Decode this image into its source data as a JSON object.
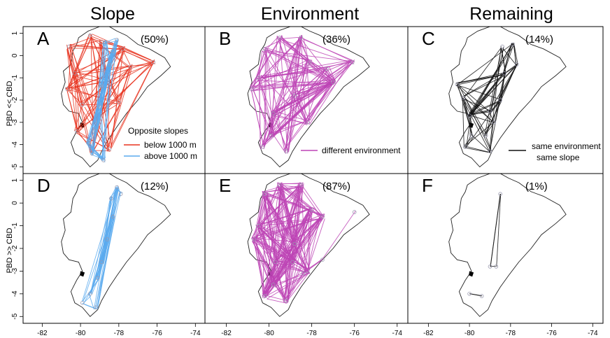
{
  "column_titles": [
    "Slope",
    "Environment",
    "Remaining"
  ],
  "row_labels": [
    "PBD << CBD",
    "PBD >> CBD"
  ],
  "colors": {
    "red": "#e8321e",
    "blue": "#5aaaee",
    "magenta": "#bd44b5",
    "black": "#111111",
    "outline": "#222222"
  },
  "legend": {
    "A_title": "Opposite slopes",
    "A_items": [
      {
        "label": "below 1000 m",
        "color": "#e8321e"
      },
      {
        "label": "above 1000 m",
        "color": "#5aaaee"
      }
    ],
    "B_item": {
      "label": "different environment",
      "color": "#bd44b5"
    },
    "C_lines": [
      "same environment",
      "same slope"
    ]
  },
  "chart_data": {
    "type": "network-map",
    "x_ticks": [
      "-82",
      "-80",
      "-78",
      "-76",
      "-74"
    ],
    "x_tick_values": [
      -82,
      -80,
      -78,
      -76,
      -74
    ],
    "y_ticks": [
      "1",
      "0",
      "-1",
      "-2",
      "-3",
      "-4",
      "-5"
    ],
    "y_tick_values": [
      1,
      0,
      -1,
      -2,
      -3,
      -4,
      -5
    ],
    "xlim": [
      -83,
      -73.5
    ],
    "ylim": [
      -5.3,
      1.3
    ],
    "panels": [
      {
        "letter": "A",
        "percent": "(50%)",
        "row": 0,
        "col": 0,
        "series": [
          {
            "color": "red",
            "count": 110,
            "nodes": [
              [
                -80.6,
                0.4
              ],
              [
                -80.3,
                -0.8
              ],
              [
                -79.9,
                -2.2
              ],
              [
                -80.2,
                -3.4
              ],
              [
                -79.4,
                -4.3
              ],
              [
                -78.9,
                0.6
              ],
              [
                -78.6,
                -1.2
              ],
              [
                -78.0,
                -2.1
              ],
              [
                -77.4,
                -0.5
              ],
              [
                -76.2,
                -0.3
              ],
              [
                -78.5,
                -4.2
              ],
              [
                -79.5,
                0.9
              ],
              [
                -80.7,
                -1.5
              ],
              [
                -77.8,
                0.3
              ],
              [
                -79.2,
                -2.9
              ]
            ],
            "spread": 0.25
          },
          {
            "color": "blue",
            "count": 70,
            "nodes": [
              [
                -78.7,
                0.6
              ],
              [
                -78.5,
                -0.4
              ],
              [
                -78.9,
                -1.4
              ],
              [
                -79.0,
                -2.3
              ],
              [
                -79.2,
                -3.4
              ],
              [
                -79.4,
                -4.4
              ],
              [
                -78.3,
                0.2
              ],
              [
                -78.8,
                -4.7
              ],
              [
                -79.6,
                -3.9
              ],
              [
                -78.1,
                0.7
              ]
            ],
            "spread": 0.2
          }
        ]
      },
      {
        "letter": "B",
        "percent": "(36%)",
        "row": 0,
        "col": 1,
        "series": [
          {
            "color": "magenta",
            "count": 150,
            "nodes": [
              [
                -80.5,
                -1.0
              ],
              [
                -80.2,
                0.3
              ],
              [
                -79.8,
                -2.6
              ],
              [
                -80.3,
                -4.1
              ],
              [
                -79.2,
                -4.3
              ],
              [
                -78.5,
                0.8
              ],
              [
                -78.1,
                -0.3
              ],
              [
                -77.3,
                -0.6
              ],
              [
                -76.1,
                -0.3
              ],
              [
                -78.8,
                -1.8
              ],
              [
                -79.5,
                0.8
              ],
              [
                -78.2,
                -3.0
              ],
              [
                -77.0,
                -1.2
              ],
              [
                -79.9,
                -3.6
              ],
              [
                -80.8,
                -1.5
              ]
            ],
            "spread": 0.25
          }
        ]
      },
      {
        "letter": "C",
        "percent": "(14%)",
        "row": 0,
        "col": 2,
        "series": [
          {
            "color": "black",
            "count": 80,
            "nodes": [
              [
                -80.6,
                -1.3
              ],
              [
                -80.3,
                -1.9
              ],
              [
                -80.0,
                -2.7
              ],
              [
                -79.9,
                -3.6
              ],
              [
                -80.2,
                -4.1
              ],
              [
                -79.2,
                -3.6
              ],
              [
                -79.0,
                -4.3
              ],
              [
                -78.5,
                -2.0
              ],
              [
                -78.3,
                -0.8
              ],
              [
                -77.7,
                -0.4
              ],
              [
                -77.9,
                0.5
              ],
              [
                -78.4,
                0.4
              ],
              [
                -79.0,
                -2.5
              ],
              [
                -78.8,
                -3.0
              ]
            ],
            "spread": 0.15
          }
        ]
      },
      {
        "letter": "D",
        "percent": "(12%)",
        "row": 1,
        "col": 0,
        "series": [
          {
            "color": "blue",
            "count": 55,
            "nodes": [
              [
                -78.1,
                0.7
              ],
              [
                -78.4,
                0.2
              ],
              [
                -78.3,
                -0.6
              ],
              [
                -78.6,
                -1.6
              ],
              [
                -78.9,
                -2.6
              ],
              [
                -79.1,
                -3.3
              ],
              [
                -79.5,
                -4.0
              ],
              [
                -79.9,
                -4.4
              ],
              [
                -79.2,
                -4.6
              ],
              [
                -77.9,
                0.4
              ]
            ],
            "spread": 0.2
          }
        ]
      },
      {
        "letter": "E",
        "percent": "(87%)",
        "row": 1,
        "col": 1,
        "series": [
          {
            "color": "magenta",
            "count": 240,
            "nodes": [
              [
                -80.5,
                -1.0
              ],
              [
                -80.2,
                0.4
              ],
              [
                -79.7,
                -2.6
              ],
              [
                -80.2,
                -4.1
              ],
              [
                -79.2,
                -4.3
              ],
              [
                -78.5,
                0.8
              ],
              [
                -78.0,
                -0.3
              ],
              [
                -77.5,
                -0.6
              ],
              [
                -78.8,
                -1.8
              ],
              [
                -79.5,
                0.8
              ],
              [
                -78.2,
                -3.0
              ],
              [
                -79.8,
                -3.6
              ],
              [
                -80.7,
                -1.6
              ],
              [
                -78.9,
                -2.6
              ]
            ],
            "spread": 0.25
          },
          {
            "color": "magenta",
            "count": 4,
            "nodes": [
              [
                -76.0,
                -0.4
              ],
              [
                -78.4,
                -3.1
              ],
              [
                -77.5,
                -2.5
              ]
            ],
            "spread": 0.1
          }
        ]
      },
      {
        "letter": "F",
        "percent": "(1%)",
        "row": 1,
        "col": 2,
        "series": [
          {
            "color": "black",
            "count": 4,
            "nodes": [
              [
                -78.5,
                0.4
              ],
              [
                -79.0,
                -2.8
              ],
              [
                -78.7,
                -2.8
              ]
            ],
            "spread": 0.05
          },
          {
            "color": "black",
            "count": 2,
            "nodes": [
              [
                -80.0,
                -4.0
              ],
              [
                -79.4,
                -4.1
              ]
            ],
            "spread": 0.04
          }
        ]
      }
    ]
  }
}
